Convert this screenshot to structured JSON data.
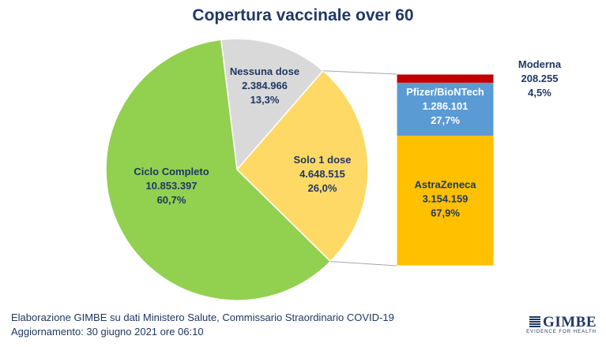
{
  "chart_data": {
    "type": "pie",
    "title": "Copertura vaccinale over 60",
    "slices": [
      {
        "label": "Ciclo Completo",
        "value_text": "10.853.397",
        "pct_text": "60,7%",
        "value": 10853397,
        "pct": 60.7,
        "color": "#92d050"
      },
      {
        "label": "Nessuna dose",
        "value_text": "2.384.966",
        "pct_text": "13,3%",
        "value": 2384966,
        "pct": 13.3,
        "color": "#d9d9d9"
      },
      {
        "label": "Solo 1 dose",
        "value_text": "4.648.515",
        "pct_text": "26,0%",
        "value": 4648515,
        "pct": 26.0,
        "color": "#ffd966"
      }
    ],
    "breakdown": {
      "of": "Solo 1 dose",
      "type": "stacked-bar",
      "segments": [
        {
          "label": "AstraZeneca",
          "value_text": "3.154.159",
          "pct_text": "67,9%",
          "value": 3154159,
          "pct": 67.9,
          "color": "#ffc000"
        },
        {
          "label": "Pfizer/BioNTech",
          "value_text": "1.286.101",
          "pct_text": "27,7%",
          "value": 1286101,
          "pct": 27.7,
          "color": "#5b9bd5"
        },
        {
          "label": "Moderna",
          "value_text": "208.255",
          "pct_text": "4,5%",
          "value": 208255,
          "pct": 4.5,
          "color": "#c00000"
        }
      ]
    }
  },
  "footer": {
    "line1": "Elaborazione GIMBE su dati Ministero Salute, Commissario Straordinario COVID-19",
    "line2": "Aggiornamento: 30 giugno 2021 ore 06:10"
  },
  "logo": {
    "name": "GIMBE",
    "tagline": "EVIDENCE FOR HEALTH"
  }
}
